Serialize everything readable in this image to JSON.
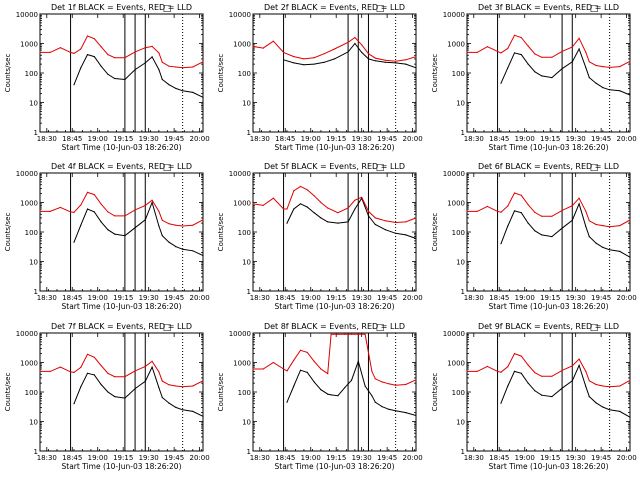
{
  "colors": {
    "events": "#000000",
    "lld": "#e00000",
    "background": "#ffffff"
  },
  "shared": {
    "ylabel": "Counts/sec",
    "xlabel": "Start Time (10-Jun-03 18:26:20)",
    "xticks": [
      "18:30",
      "18:45",
      "19:00",
      "19:15",
      "19:30",
      "19:45",
      "20:00"
    ],
    "yticks": [
      "1",
      "10",
      "100",
      "1000",
      "10000"
    ]
  },
  "chart_data": [
    {
      "type": "line",
      "title": "Det 1f BLACK = Events, RED = LLD",
      "xlabel": "Start Time (10-Jun-03 18:26:20)",
      "ylabel": "Counts/sec",
      "ylim": [
        1,
        10000
      ],
      "yscale": "log",
      "x": [
        0,
        6,
        12,
        18,
        20,
        24,
        28,
        32,
        36,
        40,
        44,
        50,
        56,
        62,
        66,
        70,
        72,
        76,
        80,
        84,
        90,
        96
      ],
      "series": [
        {
          "name": "Events",
          "values": [
            null,
            null,
            null,
            null,
            40,
            150,
            420,
            360,
            170,
            90,
            65,
            60,
            130,
            220,
            350,
            130,
            60,
            40,
            30,
            25,
            22,
            15
          ]
        },
        {
          "name": "LLD",
          "values": [
            500,
            500,
            720,
            500,
            460,
            650,
            1800,
            1450,
            780,
            420,
            330,
            330,
            520,
            720,
            800,
            480,
            230,
            170,
            160,
            150,
            160,
            240
          ]
        }
      ],
      "vlines": [
        18,
        50,
        56,
        62
      ],
      "dotted_vlines": [
        84
      ],
      "marker": "□"
    },
    {
      "type": "line",
      "title": "Det 2f BLACK = Events, RED = LLD",
      "xlabel": "Start Time (10-Jun-03 18:26:20)",
      "ylabel": "Counts/sec",
      "ylim": [
        1,
        10000
      ],
      "yscale": "log",
      "x": [
        0,
        6,
        12,
        18,
        24,
        30,
        36,
        42,
        48,
        56,
        60,
        64,
        68,
        72,
        78,
        84,
        90,
        96
      ],
      "series": [
        {
          "name": "Events",
          "values": [
            null,
            null,
            null,
            280,
            220,
            190,
            200,
            230,
            300,
            520,
            1000,
            500,
            300,
            260,
            230,
            220,
            200,
            150
          ]
        },
        {
          "name": "LLD",
          "values": [
            800,
            700,
            1200,
            500,
            360,
            300,
            330,
            450,
            650,
            1100,
            1600,
            900,
            450,
            320,
            270,
            250,
            280,
            360
          ]
        }
      ],
      "vlines": [
        18,
        56,
        62,
        68
      ],
      "dotted_vlines": [
        84
      ],
      "marker": "□"
    },
    {
      "type": "line",
      "title": "Det 3f BLACK = Events, RED = LLD",
      "xlabel": "Start Time (10-Jun-03 18:26:20)",
      "ylabel": "Counts/sec",
      "ylim": [
        1,
        10000
      ],
      "yscale": "log",
      "x": [
        0,
        6,
        12,
        18,
        20,
        24,
        28,
        32,
        36,
        40,
        44,
        50,
        56,
        62,
        66,
        70,
        72,
        76,
        80,
        84,
        90,
        96
      ],
      "series": [
        {
          "name": "Events",
          "values": [
            null,
            null,
            null,
            null,
            45,
            150,
            480,
            420,
            200,
            110,
            80,
            70,
            140,
            240,
            650,
            150,
            70,
            45,
            32,
            27,
            25,
            18
          ]
        },
        {
          "name": "LLD",
          "values": [
            500,
            500,
            780,
            540,
            480,
            680,
            1900,
            1600,
            820,
            440,
            340,
            340,
            540,
            760,
            1500,
            500,
            240,
            180,
            165,
            155,
            165,
            250
          ]
        }
      ],
      "vlines": [
        18,
        56,
        62
      ],
      "dotted_vlines": [
        84
      ],
      "marker": "□"
    },
    {
      "type": "line",
      "title": "Det 4f BLACK = Events, RED = LLD",
      "xlabel": "Start Time (10-Jun-03 18:26:20)",
      "ylabel": "Counts/sec",
      "ylim": [
        1,
        10000
      ],
      "yscale": "log",
      "x": [
        0,
        6,
        12,
        18,
        20,
        24,
        28,
        32,
        36,
        40,
        44,
        50,
        56,
        62,
        66,
        70,
        72,
        76,
        80,
        84,
        90,
        96
      ],
      "series": [
        {
          "name": "Events",
          "values": [
            null,
            null,
            null,
            null,
            45,
            170,
            600,
            480,
            220,
            120,
            85,
            75,
            140,
            260,
            1000,
            160,
            75,
            45,
            32,
            26,
            23,
            16
          ]
        },
        {
          "name": "LLD",
          "values": [
            500,
            500,
            680,
            480,
            460,
            820,
            2200,
            1850,
            880,
            480,
            350,
            350,
            560,
            800,
            1200,
            500,
            250,
            190,
            170,
            160,
            170,
            260
          ]
        }
      ],
      "vlines": [
        18,
        50,
        56,
        62
      ],
      "dotted_vlines": [
        84
      ],
      "marker": "□"
    },
    {
      "type": "line",
      "title": "Det 5f BLACK = Events, RED = LLD",
      "xlabel": "Start Time (10-Jun-03 18:26:20)",
      "ylabel": "Counts/sec",
      "ylim": [
        1,
        10000
      ],
      "yscale": "log",
      "x": [
        0,
        6,
        12,
        18,
        20,
        24,
        28,
        32,
        36,
        40,
        44,
        50,
        56,
        60,
        64,
        68,
        72,
        78,
        84,
        90,
        96
      ],
      "series": [
        {
          "name": "Events",
          "values": [
            null,
            null,
            null,
            null,
            200,
            600,
            900,
            700,
            450,
            300,
            220,
            200,
            220,
            600,
            1400,
            350,
            180,
            120,
            90,
            80,
            60
          ]
        },
        {
          "name": "LLD",
          "values": [
            900,
            800,
            1400,
            600,
            600,
            2500,
            3500,
            2700,
            1700,
            1000,
            650,
            450,
            650,
            1200,
            1500,
            500,
            300,
            240,
            210,
            220,
            300
          ]
        }
      ],
      "vlines": [
        18,
        56,
        62,
        68
      ],
      "dotted_vlines": [
        84
      ],
      "marker": "□"
    },
    {
      "type": "line",
      "title": "Det 6f BLACK = Events, RED = LLD",
      "xlabel": "Start Time (10-Jun-03 18:26:20)",
      "ylabel": "Counts/sec",
      "ylim": [
        1,
        10000
      ],
      "yscale": "log",
      "x": [
        0,
        6,
        12,
        18,
        20,
        24,
        28,
        32,
        36,
        40,
        44,
        50,
        56,
        62,
        66,
        70,
        72,
        76,
        80,
        84,
        90,
        96
      ],
      "series": [
        {
          "name": "Events",
          "values": [
            null,
            null,
            null,
            null,
            40,
            160,
            520,
            450,
            200,
            110,
            80,
            70,
            135,
            250,
            900,
            150,
            70,
            42,
            30,
            25,
            22,
            14
          ]
        },
        {
          "name": "LLD",
          "values": [
            500,
            500,
            740,
            500,
            470,
            760,
            2100,
            1750,
            840,
            460,
            340,
            340,
            540,
            780,
            1400,
            500,
            240,
            180,
            165,
            150,
            165,
            255
          ]
        }
      ],
      "vlines": [
        18,
        56,
        62
      ],
      "dotted_vlines": [
        84
      ],
      "marker": "□"
    },
    {
      "type": "line",
      "title": "Det 7f BLACK = Events, RED = LLD",
      "xlabel": "Start Time (10-Jun-03 18:26:20)",
      "ylabel": "Counts/sec",
      "ylim": [
        1,
        10000
      ],
      "yscale": "log",
      "x": [
        0,
        6,
        12,
        18,
        20,
        24,
        28,
        32,
        36,
        40,
        44,
        50,
        56,
        62,
        66,
        70,
        72,
        76,
        80,
        84,
        90,
        96
      ],
      "series": [
        {
          "name": "Events",
          "values": [
            null,
            null,
            null,
            null,
            40,
            150,
            430,
            380,
            180,
            100,
            70,
            62,
            130,
            230,
            700,
            140,
            65,
            42,
            30,
            25,
            22,
            15
          ]
        },
        {
          "name": "LLD",
          "values": [
            500,
            500,
            700,
            480,
            460,
            680,
            1900,
            1500,
            790,
            430,
            330,
            330,
            520,
            740,
            1100,
            480,
            235,
            175,
            160,
            150,
            160,
            240
          ]
        }
      ],
      "vlines": [
        18,
        50,
        56,
        62
      ],
      "dotted_vlines": [
        84
      ],
      "marker": "□"
    },
    {
      "type": "line",
      "title": "Det 8f BLACK = Events, RED = LLD",
      "xlabel": "Start Time (10-Jun-03 18:26:20)",
      "ylabel": "Counts/sec",
      "ylim": [
        1,
        10000
      ],
      "yscale": "log",
      "x": [
        0,
        6,
        12,
        18,
        20,
        24,
        28,
        32,
        36,
        40,
        44,
        46,
        50,
        54,
        58,
        62,
        66,
        70,
        72,
        76,
        80,
        84,
        90,
        96
      ],
      "series": [
        {
          "name": "Events",
          "values": [
            null,
            null,
            null,
            null,
            45,
            160,
            550,
            460,
            220,
            120,
            85,
            80,
            75,
            140,
            250,
            1100,
            160,
            75,
            45,
            32,
            26,
            23,
            20,
            16
          ]
        },
        {
          "name": "LLD",
          "values": [
            600,
            600,
            1000,
            600,
            520,
            1200,
            2600,
            2200,
            1100,
            600,
            420,
            9000,
            9000,
            9000,
            9000,
            9000,
            9000,
            500,
            280,
            220,
            190,
            170,
            180,
            260
          ]
        }
      ],
      "vlines": [
        18,
        56,
        62,
        68
      ],
      "dotted_vlines": [
        84
      ],
      "marker": "□"
    },
    {
      "type": "line",
      "title": "Det 9f BLACK = Events, RED = LLD",
      "xlabel": "Start Time (10-Jun-03 18:26:20)",
      "ylabel": "Counts/sec",
      "ylim": [
        1,
        10000
      ],
      "yscale": "log",
      "x": [
        0,
        6,
        12,
        18,
        20,
        24,
        28,
        32,
        36,
        40,
        44,
        50,
        56,
        62,
        66,
        70,
        72,
        76,
        80,
        84,
        90,
        96
      ],
      "series": [
        {
          "name": "Events",
          "values": [
            null,
            null,
            null,
            null,
            42,
            160,
            500,
            430,
            200,
            110,
            78,
            70,
            135,
            240,
            800,
            150,
            70,
            43,
            31,
            25,
            22,
            14
          ]
        },
        {
          "name": "LLD",
          "values": [
            500,
            500,
            740,
            500,
            470,
            720,
            2000,
            1650,
            820,
            450,
            340,
            340,
            540,
            770,
            1300,
            490,
            240,
            180,
            160,
            150,
            160,
            250
          ]
        }
      ],
      "vlines": [
        18,
        56,
        62
      ],
      "dotted_vlines": [
        84
      ],
      "marker": "□"
    }
  ]
}
